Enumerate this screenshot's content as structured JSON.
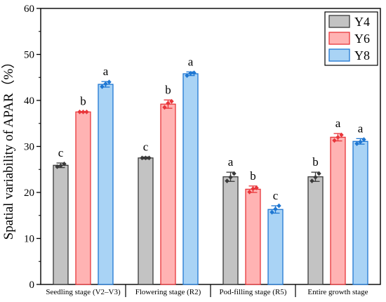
{
  "chart_data": {
    "type": "bar",
    "ylabel": "Spatial variability of APAR（%）",
    "xlabel": "",
    "ylim": [
      0,
      60
    ],
    "yticks": [
      0,
      10,
      20,
      30,
      40,
      50,
      60
    ],
    "categories": [
      "Seedling stage (V2–V3)",
      "Flowering stage (R2)",
      "Pod-filling stage (R5)",
      "Entire growth stage"
    ],
    "series": [
      {
        "name": "Y4",
        "fill": "#c3c3c3",
        "stroke": "#3a3a3a",
        "values": [
          25.9,
          27.5,
          23.4,
          23.4
        ],
        "errors": [
          0.5,
          0.2,
          1.0,
          1.0
        ],
        "points": [
          [
            25.6,
            25.8,
            26.2
          ],
          [
            27.5,
            27.5,
            27.5
          ],
          [
            22.5,
            23.3,
            24.1
          ],
          [
            22.5,
            23.3,
            24.1
          ]
        ],
        "letters": [
          "c",
          "c",
          "a",
          "b"
        ]
      },
      {
        "name": "Y6",
        "fill": "#ffb3b3",
        "stroke": "#e8363b",
        "values": [
          37.5,
          39.2,
          20.7,
          32.0
        ],
        "errors": [
          0.1,
          0.9,
          0.7,
          0.8
        ],
        "points": [
          [
            37.5,
            37.5,
            37.5
          ],
          [
            38.5,
            39.4,
            39.8
          ],
          [
            20.1,
            20.8,
            21.0
          ],
          [
            31.3,
            32.0,
            32.5
          ]
        ],
        "letters": [
          "b",
          "b",
          "b",
          "a"
        ]
      },
      {
        "name": "Y8",
        "fill": "#a9d3f5",
        "stroke": "#1f77d2",
        "values": [
          43.5,
          45.8,
          16.3,
          31.1
        ],
        "errors": [
          0.6,
          0.4,
          0.8,
          0.6
        ],
        "points": [
          [
            43.0,
            43.6,
            44.0
          ],
          [
            45.4,
            45.9,
            46.0
          ],
          [
            15.7,
            16.4,
            17.1
          ],
          [
            30.6,
            31.0,
            31.5
          ]
        ],
        "letters": [
          "a",
          "a",
          "c",
          "a"
        ]
      }
    ],
    "legend_position": "top-right"
  }
}
